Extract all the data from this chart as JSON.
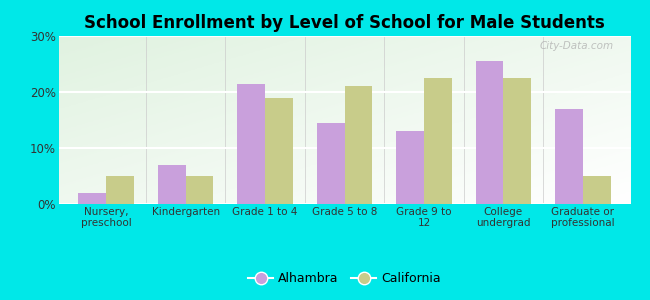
{
  "title": "School Enrollment by Level of School for Male Students",
  "categories": [
    "Nursery,\npreschool",
    "Kindergarten",
    "Grade 1 to 4",
    "Grade 5 to 8",
    "Grade 9 to\n12",
    "College\nundergrad",
    "Graduate or\nprofessional"
  ],
  "alhambra": [
    2.0,
    7.0,
    21.5,
    14.5,
    13.0,
    25.5,
    17.0
  ],
  "california": [
    5.0,
    5.0,
    19.0,
    21.0,
    22.5,
    22.5,
    5.0
  ],
  "alhambra_color": "#c9a0dc",
  "california_color": "#c8cc8a",
  "background_color": "#00e8e8",
  "ylim": [
    0,
    30
  ],
  "yticks": [
    0,
    10,
    20,
    30
  ],
  "ytick_labels": [
    "0%",
    "10%",
    "20%",
    "30%"
  ],
  "bar_width": 0.35,
  "legend_labels": [
    "Alhambra",
    "California"
  ],
  "watermark": "City-Data.com"
}
